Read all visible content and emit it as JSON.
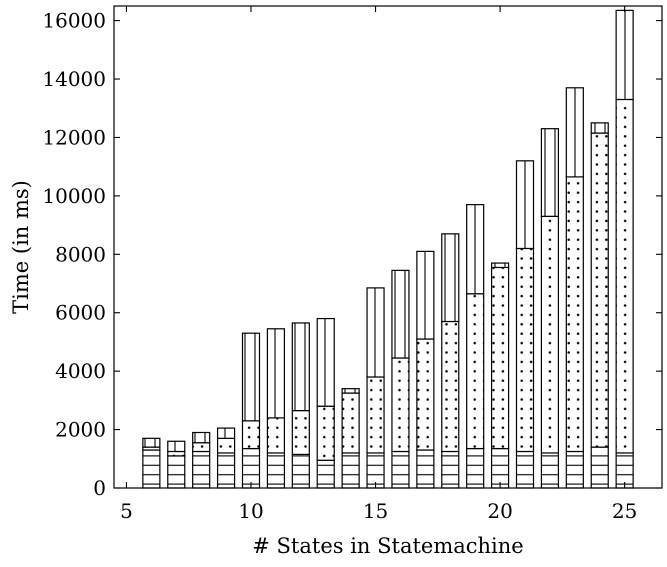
{
  "chart_data": {
    "type": "bar",
    "stacked": true,
    "xlabel": "# States in Statemachine",
    "ylabel": "Time (in ms)",
    "xlim": [
      4.5,
      26.5
    ],
    "ylim": [
      0,
      16500
    ],
    "x_ticks": [
      5,
      10,
      15,
      20,
      25
    ],
    "y_ticks": [
      0,
      2000,
      4000,
      6000,
      8000,
      10000,
      12000,
      14000,
      16000
    ],
    "grid": false,
    "legend": "none",
    "categories": [
      6,
      7,
      8,
      9,
      10,
      11,
      12,
      13,
      14,
      15,
      16,
      17,
      18,
      19,
      20,
      21,
      22,
      23,
      24,
      25
    ],
    "series": [
      {
        "pattern": "horizontal-lines",
        "values": [
          1300,
          1100,
          1250,
          1200,
          1350,
          1200,
          1150,
          950,
          1200,
          1200,
          1250,
          1300,
          1250,
          1350,
          1350,
          1250,
          1200,
          1250,
          1400,
          1200
        ]
      },
      {
        "pattern": "dots",
        "values": [
          100,
          150,
          300,
          500,
          950,
          1200,
          1500,
          1850,
          2050,
          2600,
          3200,
          3800,
          4450,
          5300,
          6200,
          6950,
          8100,
          9400,
          10750,
          12100
        ]
      },
      {
        "pattern": "vertical-lines",
        "values": [
          300,
          350,
          350,
          350,
          3000,
          3050,
          3000,
          3000,
          150,
          3050,
          3000,
          3000,
          3000,
          3050,
          150,
          3000,
          3000,
          3050,
          350,
          3050
        ]
      }
    ]
  }
}
